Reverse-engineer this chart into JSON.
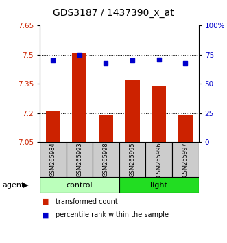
{
  "title": "GDS3187 / 1437390_x_at",
  "samples": [
    "GSM265984",
    "GSM265993",
    "GSM265998",
    "GSM265995",
    "GSM265996",
    "GSM265997"
  ],
  "bar_values": [
    7.21,
    7.51,
    7.19,
    7.37,
    7.34,
    7.19
  ],
  "percentile_values": [
    70.0,
    75.0,
    67.5,
    70.0,
    70.5,
    67.5
  ],
  "bar_color": "#cc2200",
  "dot_color": "#0000cc",
  "y_min": 7.05,
  "y_max": 7.65,
  "y_ticks": [
    7.05,
    7.2,
    7.35,
    7.5,
    7.65
  ],
  "y_tick_labels": [
    "7.05",
    "7.2",
    "7.35",
    "7.5",
    "7.65"
  ],
  "right_y_ticks": [
    0,
    25,
    50,
    75,
    100
  ],
  "right_y_tick_labels": [
    "0",
    "25",
    "50",
    "75",
    "100%"
  ],
  "grid_values": [
    7.2,
    7.35,
    7.5
  ],
  "groups": [
    {
      "label": "control",
      "indices": [
        0,
        1,
        2
      ],
      "color": "#bbffbb"
    },
    {
      "label": "light",
      "indices": [
        3,
        4,
        5
      ],
      "color": "#22dd22"
    }
  ],
  "agent_label": "agent",
  "legend_items": [
    {
      "color": "#cc2200",
      "label": "transformed count"
    },
    {
      "color": "#0000cc",
      "label": "percentile rank within the sample"
    }
  ],
  "bar_width": 0.55,
  "title_fontsize": 10,
  "tick_fontsize": 7.5,
  "sample_fontsize": 6,
  "group_fontsize": 8,
  "legend_fontsize": 7
}
